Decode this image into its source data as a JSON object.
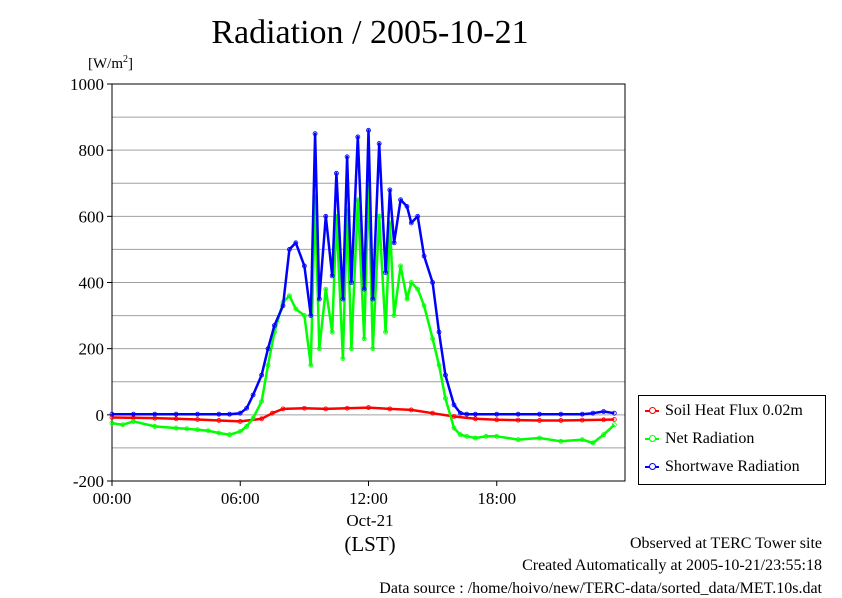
{
  "chart_data": {
    "type": "line",
    "title": "Radiation / 2005-10-21",
    "ylabel_unit": "[W/m",
    "ylabel_unit_sup": "2",
    "ylabel_unit_close": "]",
    "ylim": [
      -200,
      1000
    ],
    "yticks": [
      -200,
      0,
      200,
      400,
      600,
      800,
      1000
    ],
    "y_gridlines": [
      -100,
      0,
      100,
      200,
      300,
      400,
      500,
      600,
      700,
      800,
      900
    ],
    "xlim": [
      0,
      24
    ],
    "xticks": [
      {
        "hour": 0,
        "label": "00:00"
      },
      {
        "hour": 6,
        "label": "06:00"
      },
      {
        "hour": 12,
        "label": "12:00"
      },
      {
        "hour": 18,
        "label": "18:00"
      }
    ],
    "x_center_label": "Oct-21",
    "xlabel": "(LST)",
    "legend_position": "right",
    "series": [
      {
        "name": "Soil Heat Flux 0.02m",
        "color": "#ff0000",
        "x": [
          0,
          1,
          2,
          3,
          4,
          5,
          6,
          7,
          7.5,
          8,
          9,
          10,
          11,
          12,
          13,
          14,
          15,
          16,
          17,
          18,
          19,
          20,
          21,
          22,
          23,
          23.5
        ],
        "y": [
          -8,
          -9,
          -10,
          -12,
          -14,
          -17,
          -20,
          -12,
          5,
          18,
          20,
          18,
          20,
          22,
          18,
          15,
          5,
          -5,
          -12,
          -15,
          -16,
          -17,
          -17,
          -16,
          -15,
          -14
        ]
      },
      {
        "name": "Net Radiation",
        "color": "#00ff00",
        "x": [
          0,
          0.5,
          1,
          2,
          3,
          3.5,
          4,
          4.5,
          5,
          5.5,
          6,
          6.3,
          6.6,
          7,
          7.3,
          7.6,
          8,
          8.3,
          8.6,
          9,
          9.3,
          9.5,
          9.7,
          10,
          10.3,
          10.5,
          10.8,
          11,
          11.2,
          11.5,
          11.8,
          12,
          12.2,
          12.5,
          12.8,
          13,
          13.2,
          13.5,
          13.8,
          14,
          14.3,
          14.6,
          15,
          15.3,
          15.6,
          16,
          16.3,
          16.6,
          17,
          17.5,
          18,
          19,
          20,
          21,
          22,
          22.5,
          23,
          23.5
        ],
        "y": [
          -25,
          -30,
          -20,
          -35,
          -40,
          -42,
          -45,
          -48,
          -55,
          -60,
          -50,
          -35,
          -10,
          40,
          150,
          250,
          340,
          360,
          320,
          300,
          150,
          660,
          200,
          380,
          250,
          600,
          170,
          620,
          200,
          650,
          230,
          710,
          200,
          600,
          250,
          580,
          300,
          450,
          350,
          400,
          380,
          330,
          230,
          150,
          50,
          -40,
          -60,
          -65,
          -70,
          -65,
          -65,
          -75,
          -70,
          -80,
          -75,
          -85,
          -60,
          -30
        ]
      },
      {
        "name": "Shortwave Radiation",
        "color": "#0000ff",
        "x": [
          0,
          1,
          2,
          3,
          4,
          5,
          5.5,
          6,
          6.3,
          6.6,
          7,
          7.3,
          7.6,
          8,
          8.3,
          8.6,
          9,
          9.3,
          9.5,
          9.7,
          10,
          10.3,
          10.5,
          10.8,
          11,
          11.2,
          11.5,
          11.8,
          12,
          12.2,
          12.5,
          12.8,
          13,
          13.2,
          13.5,
          13.8,
          14,
          14.3,
          14.6,
          15,
          15.3,
          15.6,
          16,
          16.3,
          16.6,
          17,
          18,
          19,
          20,
          21,
          22,
          22.5,
          23,
          23.5
        ],
        "y": [
          2,
          2,
          2,
          2,
          2,
          2,
          2,
          5,
          20,
          60,
          120,
          200,
          270,
          330,
          500,
          520,
          450,
          300,
          850,
          350,
          600,
          420,
          730,
          350,
          780,
          400,
          840,
          380,
          860,
          350,
          820,
          430,
          680,
          520,
          650,
          630,
          580,
          600,
          480,
          400,
          250,
          120,
          30,
          5,
          2,
          2,
          2,
          2,
          2,
          2,
          2,
          5,
          10,
          5
        ]
      }
    ]
  },
  "footer": {
    "observed": "Observed at TERC Tower site",
    "created": "Created Automatically at 2005-10-21/23:55:18",
    "source": "Data source : /home/hoivo/new/TERC-data/sorted_data/MET.10s.dat"
  }
}
